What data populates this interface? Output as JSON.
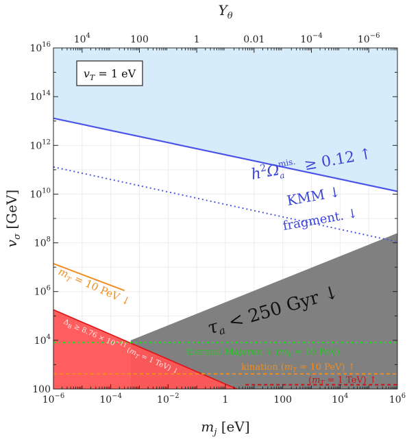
{
  "chart_data": {
    "type": "area",
    "xlabel": "m_j [eV]",
    "ylabel": "v_σ [GeV]",
    "top_xlabel": "Y_θ",
    "x_scale": "log",
    "y_scale": "log",
    "xlim": [
      1e-06,
      1000000.0
    ],
    "ylim": [
      100,
      1e+16
    ],
    "x_ticks": [
      {
        "base": "10",
        "exp": "−6"
      },
      {
        "base": "10",
        "exp": "−4"
      },
      {
        "base": "10",
        "exp": "−2"
      },
      {
        "base": "1",
        "exp": ""
      },
      {
        "base": "100",
        "exp": ""
      },
      {
        "base": "10",
        "exp": "4"
      },
      {
        "base": "10",
        "exp": "6"
      }
    ],
    "y_ticks": [
      {
        "base": "100",
        "exp": ""
      },
      {
        "base": "10",
        "exp": "4"
      },
      {
        "base": "10",
        "exp": "6"
      },
      {
        "base": "10",
        "exp": "8"
      },
      {
        "base": "10",
        "exp": "10"
      },
      {
        "base": "10",
        "exp": "12"
      },
      {
        "base": "10",
        "exp": "14"
      },
      {
        "base": "10",
        "exp": "16"
      }
    ],
    "top_ticks": [
      {
        "base": "10",
        "exp": "4",
        "x": 1e-05
      },
      {
        "base": "100",
        "exp": "",
        "x": 0.001
      },
      {
        "base": "1",
        "exp": "",
        "x": 0.1
      },
      {
        "base": "0.01",
        "exp": "",
        "x": 10
      },
      {
        "base": "10",
        "exp": "−4",
        "x": 1000
      },
      {
        "base": "10",
        "exp": "−6",
        "x": 100000.0
      }
    ],
    "inset_label": "v_T = 1 eV",
    "colors": {
      "blue_fill": "#d6ecfb",
      "blue_line": "#4a55e8",
      "gray_fill": "#808080",
      "red_fill": "#ff5555",
      "red_edge": "#dd1111",
      "orange": "#f08c1e",
      "green": "#22dd22",
      "darkred": "#cc1111"
    },
    "regions": [
      {
        "name": "relic overabundance",
        "label": "h²Ω_a^mis. ≥ 0.12 ↑",
        "boundary": [
          [
            1e-06,
            13000000000000.0
          ],
          [
            1000000.0,
            13000000000.0
          ]
        ],
        "fill": "above"
      },
      {
        "name": "lifetime",
        "label": "τ_a < 250 Gyr ↓",
        "polygon": [
          [
            0.0005,
            100
          ],
          [
            0.0005,
            10000.0
          ],
          [
            1000000.0,
            250000000.0
          ],
          [
            1000000.0,
            100
          ]
        ]
      },
      {
        "name": "baryon asymmetry",
        "label": "Δ_B ≥ 8.76 × 10^−11 (m_T = 1 TeV) ↓",
        "polygon": [
          [
            1e-06,
            100
          ],
          [
            1e-06,
            180000.0
          ],
          [
            2.5,
            100
          ]
        ]
      }
    ],
    "lines": [
      {
        "name": "KMM",
        "label": "KMM ↓",
        "style": "none"
      },
      {
        "name": "fragment",
        "label": "fragment. ↓",
        "style": "dotted",
        "points": [
          [
            1e-06,
            130000000000.0
          ],
          [
            1000000.0,
            110000000.0
          ]
        ]
      },
      {
        "name": "mT 10 PeV",
        "label": "m_T = 10 PeV ↓",
        "style": "solid",
        "points": [
          [
            1e-06,
            14000000.0
          ],
          [
            0.0003,
            1100000.0
          ]
        ]
      },
      {
        "name": "thermal majoron",
        "label": "thermal Majoron ↓ (m_T = 10 PeV)",
        "style": "dotted",
        "y": 8000
      },
      {
        "name": "kination",
        "label": "kination (m_T = 10 PeV) ↑",
        "style": "dashed",
        "y": 420
      },
      {
        "name": "mT 1 TeV",
        "label": "(m_T = 1 TeV) ↑",
        "style": "dashed",
        "y": 150
      }
    ]
  }
}
